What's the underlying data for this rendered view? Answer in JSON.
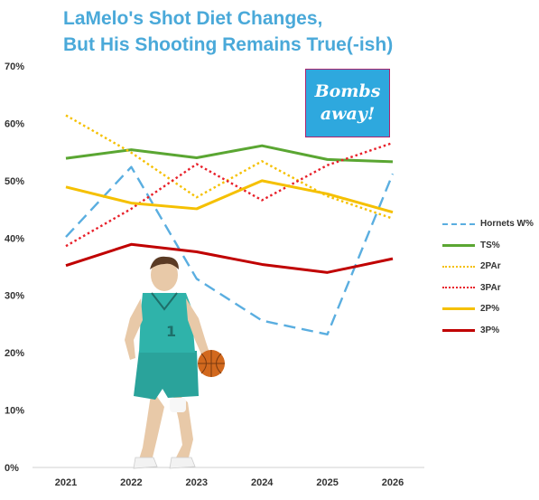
{
  "title_line1": "LaMelo's Shot Diet Changes,",
  "title_line2": "But His Shooting Remains True(-ish)",
  "callout_text": "Bombs away!",
  "chart_data": {
    "type": "line",
    "x": [
      "2021",
      "2022",
      "2023",
      "2024",
      "2025",
      "2026"
    ],
    "ylim": [
      0,
      70
    ],
    "yticks": [
      "0%",
      "10%",
      "20%",
      "30%",
      "40%",
      "50%",
      "60%",
      "70%"
    ],
    "ytick_values": [
      0,
      10,
      20,
      30,
      40,
      50,
      60,
      70
    ],
    "grid": false,
    "legend_position": "right",
    "series": [
      {
        "name": "Hornets W%",
        "color": "#5aaee0",
        "dash": "dashed",
        "values": [
          40.2,
          52.4,
          32.9,
          25.6,
          23.2,
          51.2
        ]
      },
      {
        "name": "TS%",
        "color": "#5aa632",
        "dash": "solid",
        "values": [
          53.9,
          55.4,
          54.0,
          56.1,
          53.7,
          53.3
        ]
      },
      {
        "name": "2PAr",
        "color": "#f5c000",
        "dash": "dotted",
        "values": [
          61.4,
          54.9,
          47.1,
          53.4,
          47.3,
          43.4
        ]
      },
      {
        "name": "3PAr",
        "color": "#e8202a",
        "dash": "dotted",
        "values": [
          38.6,
          45.1,
          52.9,
          46.6,
          52.7,
          56.6
        ]
      },
      {
        "name": "2P%",
        "color": "#f5c000",
        "dash": "solid",
        "values": [
          48.9,
          46.1,
          45.1,
          50.0,
          47.7,
          44.5
        ]
      },
      {
        "name": "3P%",
        "color": "#c00000",
        "dash": "solid",
        "values": [
          35.2,
          38.9,
          37.6,
          35.4,
          34.0,
          36.4
        ]
      }
    ]
  }
}
